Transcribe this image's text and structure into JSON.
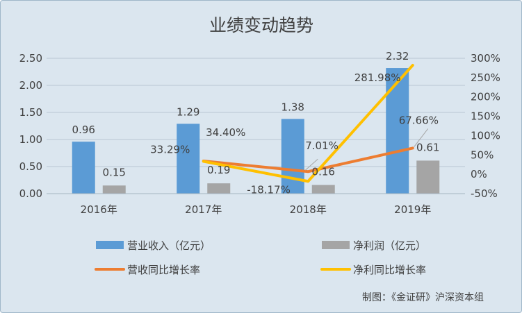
{
  "chart_data": {
    "type": "bar",
    "title": "业绩变动趋势",
    "categories": [
      "2016年",
      "2017年",
      "2018年",
      "2019年"
    ],
    "series": [
      {
        "name": "营业收入（亿元）",
        "kind": "bar",
        "axis": "left",
        "color": "#5b9bd5",
        "values": [
          0.96,
          1.29,
          1.38,
          2.32
        ],
        "labels": [
          "0.96",
          "1.29",
          "1.38",
          "2.32"
        ]
      },
      {
        "name": "净利润（亿元）",
        "kind": "bar",
        "axis": "left",
        "color": "#a5a5a5",
        "values": [
          0.15,
          0.19,
          0.16,
          0.61
        ],
        "labels": [
          "0.15",
          "0.19",
          "0.16",
          "0.61"
        ]
      },
      {
        "name": "营收同比增长率",
        "kind": "line",
        "axis": "right",
        "color": "#ed7d31",
        "values": [
          null,
          34.4,
          7.01,
          67.66
        ],
        "labels": [
          "",
          "34.40%",
          "7.01%",
          "67.66%"
        ]
      },
      {
        "name": "净利同比增长率",
        "kind": "line",
        "axis": "right",
        "color": "#ffc000",
        "values": [
          null,
          33.29,
          -18.17,
          281.98
        ],
        "labels": [
          "",
          "33.29%",
          "-18.17%",
          "281.98%"
        ]
      }
    ],
    "y_left": {
      "range": [
        0,
        2.5
      ],
      "ticks": [
        "0.00",
        "0.50",
        "1.00",
        "1.50",
        "2.00",
        "2.50"
      ]
    },
    "y_right": {
      "range": [
        -50,
        300
      ],
      "ticks": [
        "-50%",
        "0%",
        "50%",
        "100%",
        "150%",
        "200%",
        "250%",
        "300%"
      ]
    },
    "grid": true,
    "legend_position": "bottom"
  },
  "credit": "制图：《金证研》沪深资本组"
}
